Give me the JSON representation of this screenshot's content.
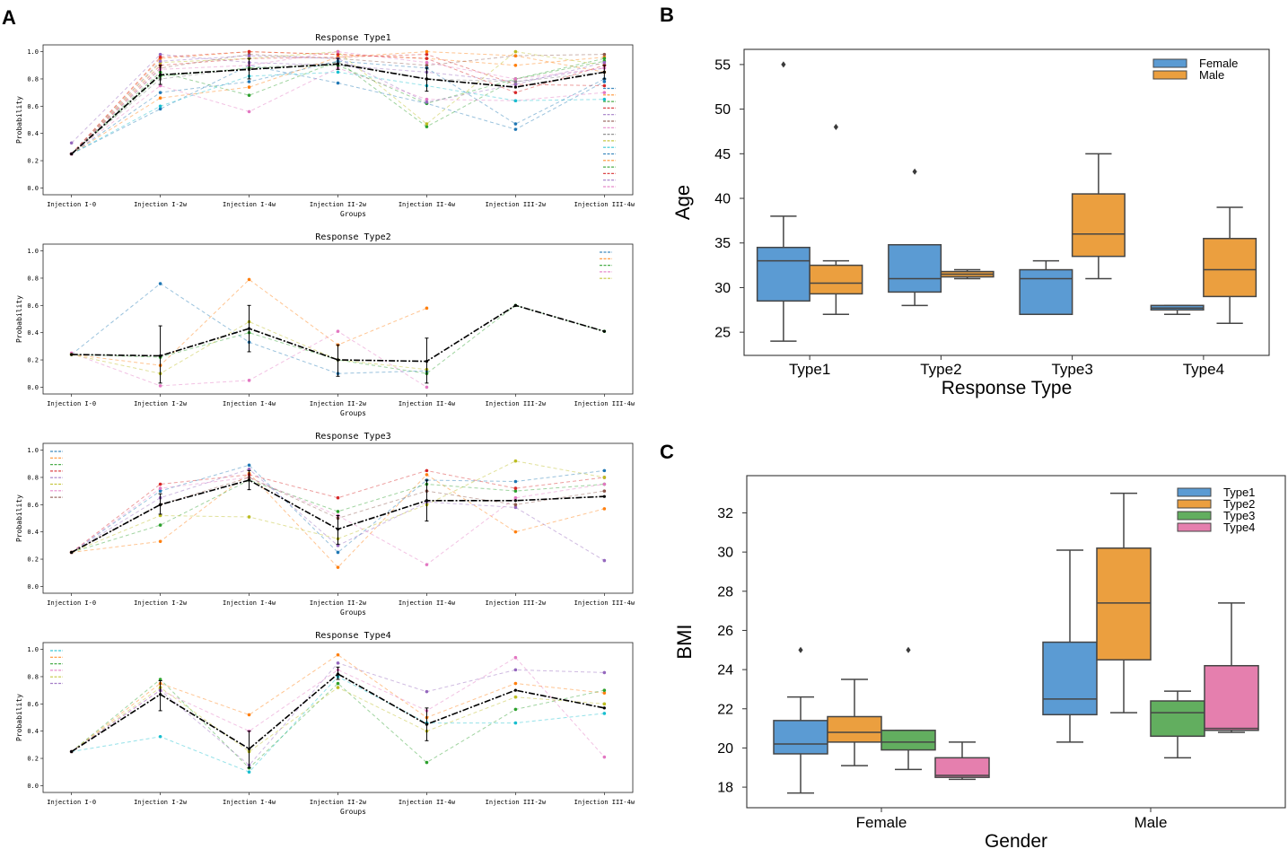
{
  "panels": {
    "a": "A",
    "b": "B",
    "c": "C"
  },
  "chart_data": [
    {
      "type": "line",
      "title": "Response Type1",
      "xlabel": "Groups",
      "ylabel": "Probability",
      "categories": [
        "Injection I-0",
        "Injection I-2w",
        "Injection I-4w",
        "Injection II-2w",
        "Injection II-4w",
        "Injection III-2w",
        "Injection III-4w"
      ],
      "yticks": [
        "0.0",
        "0.2",
        "0.4",
        "0.6",
        "0.8",
        "1.0"
      ],
      "ylim": [
        -0.05,
        1.05
      ],
      "legend": "right",
      "mean": {
        "color": "#000000",
        "values": [
          0.25,
          0.83,
          0.87,
          0.91,
          0.8,
          0.74,
          0.85
        ],
        "err_low": [
          0.25,
          0.76,
          0.8,
          0.87,
          0.71,
          0.74,
          0.8
        ],
        "err_high": [
          0.25,
          0.9,
          0.95,
          0.95,
          0.88,
          0.74,
          0.9
        ]
      },
      "series": [
        {
          "color": "#1f77b4",
          "values": [
            0.25,
            0.58,
            0.9,
            0.77,
            0.62,
            0.43,
            0.78
          ]
        },
        {
          "color": "#ff7f0e",
          "values": [
            0.25,
            0.95,
            1.0,
            0.98,
            0.95,
            0.9,
            0.96
          ]
        },
        {
          "color": "#2ca02c",
          "values": [
            0.25,
            0.85,
            0.68,
            0.93,
            0.45,
            0.8,
            0.93
          ]
        },
        {
          "color": "#d62728",
          "values": [
            0.25,
            0.9,
            0.95,
            0.96,
            0.98,
            0.76,
            0.75
          ]
        },
        {
          "color": "#9467bd",
          "values": [
            0.33,
            0.98,
            0.92,
            0.9,
            0.85,
            0.78,
            0.88
          ]
        },
        {
          "color": "#8c564b",
          "values": [
            0.25,
            0.88,
            0.98,
            0.95,
            0.9,
            0.97,
            0.98
          ]
        },
        {
          "color": "#e377c2",
          "values": [
            0.25,
            0.75,
            0.56,
            0.88,
            0.65,
            0.64,
            0.7
          ]
        },
        {
          "color": "#7f7f7f",
          "values": [
            0.25,
            0.8,
            0.88,
            0.92,
            0.8,
            0.78,
            0.85
          ]
        },
        {
          "color": "#bcbd22",
          "values": [
            0.25,
            0.92,
            0.95,
            1.0,
            0.47,
            1.0,
            0.9
          ]
        },
        {
          "color": "#17becf",
          "values": [
            0.25,
            0.6,
            0.82,
            0.85,
            0.75,
            0.64,
            0.65
          ]
        },
        {
          "color": "#1f77b4",
          "values": [
            0.25,
            0.7,
            0.78,
            0.93,
            0.88,
            0.47,
            0.8
          ]
        },
        {
          "color": "#ff7f0e",
          "values": [
            0.25,
            0.66,
            0.74,
            0.96,
            1.0,
            0.97,
            0.85
          ]
        },
        {
          "color": "#2ca02c",
          "values": [
            0.25,
            0.82,
            0.88,
            0.9,
            0.62,
            0.8,
            0.95
          ]
        },
        {
          "color": "#d62728",
          "values": [
            0.25,
            0.96,
            1.0,
            0.98,
            0.95,
            0.7,
            0.9
          ]
        },
        {
          "color": "#9467bd",
          "values": [
            0.25,
            0.93,
            0.97,
            0.95,
            0.63,
            0.76,
            0.92
          ]
        },
        {
          "color": "#e377c2",
          "values": [
            0.25,
            0.87,
            0.9,
            1.0,
            0.92,
            0.8,
            0.88
          ]
        }
      ]
    },
    {
      "type": "line",
      "title": "Response Type2",
      "xlabel": "Groups",
      "ylabel": "Probability",
      "categories": [
        "Injection I-0",
        "Injection I-2w",
        "Injection I-4w",
        "Injection II-2w",
        "Injection II-4w",
        "Injection III-2w",
        "Injection III-4w"
      ],
      "yticks": [
        "0.0",
        "0.2",
        "0.4",
        "0.6",
        "0.8",
        "1.0"
      ],
      "ylim": [
        -0.05,
        1.05
      ],
      "legend": "top-right",
      "mean": {
        "color": "#000000",
        "values": [
          0.24,
          0.23,
          0.43,
          0.2,
          0.19,
          0.6,
          0.41
        ],
        "err_low": [
          0.24,
          0.03,
          0.26,
          0.08,
          0.03,
          0.6,
          0.41
        ],
        "err_high": [
          0.24,
          0.45,
          0.6,
          0.31,
          0.36,
          0.6,
          0.41
        ]
      },
      "series": [
        {
          "color": "#1f77b4",
          "values": [
            0.24,
            0.76,
            0.33,
            0.1,
            0.12,
            null,
            null
          ]
        },
        {
          "color": "#ff7f0e",
          "values": [
            0.24,
            0.16,
            0.79,
            0.31,
            0.58,
            null,
            null
          ]
        },
        {
          "color": "#2ca02c",
          "values": [
            0.24,
            0.22,
            0.4,
            0.2,
            0.1,
            0.6,
            0.41
          ]
        },
        {
          "color": "#e377c2",
          "values": [
            0.25,
            0.01,
            0.05,
            0.41,
            0.0,
            null,
            null
          ]
        },
        {
          "color": "#bcbd22",
          "values": [
            0.24,
            0.1,
            0.48,
            0.2,
            0.13,
            null,
            null
          ]
        }
      ]
    },
    {
      "type": "line",
      "title": "Response Type3",
      "xlabel": "Groups",
      "ylabel": "Probability",
      "categories": [
        "Injection I-0",
        "Injection I-2w",
        "Injection I-4w",
        "Injection II-2w",
        "Injection II-4w",
        "Injection III-2w",
        "Injection III-4w"
      ],
      "yticks": [
        "0.0",
        "0.2",
        "0.4",
        "0.6",
        "0.8",
        "1.0"
      ],
      "ylim": [
        -0.05,
        1.05
      ],
      "legend": "top-left",
      "mean": {
        "color": "#000000",
        "values": [
          0.25,
          0.6,
          0.78,
          0.42,
          0.63,
          0.63,
          0.66
        ],
        "err_low": [
          0.25,
          0.53,
          0.71,
          0.31,
          0.48,
          0.63,
          0.66
        ],
        "err_high": [
          0.25,
          0.68,
          0.85,
          0.52,
          0.78,
          0.63,
          0.66
        ]
      },
      "series": [
        {
          "color": "#1f77b4",
          "values": [
            0.25,
            0.7,
            0.89,
            0.25,
            0.78,
            0.77,
            0.85
          ]
        },
        {
          "color": "#ff7f0e",
          "values": [
            0.25,
            0.33,
            0.83,
            0.14,
            0.82,
            0.4,
            0.57
          ]
        },
        {
          "color": "#2ca02c",
          "values": [
            0.25,
            0.45,
            0.78,
            0.55,
            0.75,
            0.7,
            0.75
          ]
        },
        {
          "color": "#d62728",
          "values": [
            0.25,
            0.75,
            0.82,
            0.65,
            0.85,
            0.72,
            0.8
          ]
        },
        {
          "color": "#9467bd",
          "values": [
            0.25,
            0.65,
            0.86,
            0.3,
            0.62,
            0.58,
            0.19
          ]
        },
        {
          "color": "#bcbd22",
          "values": [
            0.25,
            0.52,
            0.51,
            0.35,
            0.6,
            0.92,
            0.8
          ]
        },
        {
          "color": "#e377c2",
          "values": [
            0.25,
            0.72,
            0.8,
            0.52,
            0.16,
            0.65,
            0.75
          ]
        },
        {
          "color": "#8c564b",
          "values": [
            0.25,
            0.6,
            0.8,
            0.5,
            0.7,
            0.6,
            0.7
          ]
        }
      ]
    },
    {
      "type": "line",
      "title": "Response Type4",
      "xlabel": "Groups",
      "ylabel": "Probability",
      "categories": [
        "Injection I-0",
        "Injection I-2w",
        "Injection I-4w",
        "Injection II-2w",
        "Injection II-4w",
        "Injection III-2w",
        "Injection III-4w"
      ],
      "yticks": [
        "0.0",
        "0.2",
        "0.4",
        "0.6",
        "0.8",
        "1.0"
      ],
      "ylim": [
        -0.05,
        1.05
      ],
      "legend": "top-left",
      "mean": {
        "color": "#000000",
        "values": [
          0.25,
          0.67,
          0.27,
          0.82,
          0.45,
          0.7,
          0.57
        ],
        "err_low": [
          0.25,
          0.55,
          0.13,
          0.78,
          0.33,
          0.7,
          0.57
        ],
        "err_high": [
          0.25,
          0.77,
          0.4,
          0.87,
          0.57,
          0.7,
          0.57
        ]
      },
      "series": [
        {
          "color": "#17becf",
          "values": [
            0.25,
            0.36,
            0.1,
            0.8,
            0.46,
            0.46,
            0.53
          ]
        },
        {
          "color": "#ff7f0e",
          "values": [
            0.25,
            0.75,
            0.52,
            0.96,
            0.5,
            0.75,
            0.68
          ]
        },
        {
          "color": "#2ca02c",
          "values": [
            0.25,
            0.78,
            0.13,
            0.75,
            0.17,
            0.56,
            0.7
          ]
        },
        {
          "color": "#e377c2",
          "values": [
            0.25,
            0.7,
            0.4,
            0.85,
            0.55,
            0.94,
            0.21
          ]
        },
        {
          "color": "#bcbd22",
          "values": [
            0.25,
            0.72,
            0.25,
            0.72,
            0.4,
            0.65,
            0.6
          ]
        },
        {
          "color": "#9467bd",
          "values": [
            0.25,
            0.7,
            0.15,
            0.9,
            0.69,
            0.85,
            0.83
          ]
        }
      ]
    },
    {
      "type": "box",
      "title": "",
      "xlabel": "Response Type",
      "ylabel": "Age",
      "categories": [
        "Type1",
        "Type2",
        "Type3",
        "Type4"
      ],
      "yticks": [
        25,
        30,
        35,
        40,
        45,
        50,
        55
      ],
      "ylim": [
        22.4,
        56.7
      ],
      "legend": "top-right",
      "series": [
        {
          "name": "Female",
          "color": "#5b9bd3",
          "boxes": [
            {
              "whislo": 24,
              "q1": 28.5,
              "med": 33,
              "q3": 34.5,
              "whishi": 38,
              "fliers": [
                55
              ]
            },
            {
              "whislo": 28,
              "q1": 29.5,
              "med": 31,
              "q3": 34.8,
              "whishi": 34.8,
              "fliers": [
                43
              ]
            },
            {
              "whislo": 27,
              "q1": 27,
              "med": 31,
              "q3": 32,
              "whishi": 33,
              "fliers": []
            },
            {
              "whislo": 27,
              "q1": 27.5,
              "med": 27.7,
              "q3": 28,
              "whishi": 28,
              "fliers": []
            }
          ]
        },
        {
          "name": "Male",
          "color": "#eb9f3f",
          "boxes": [
            {
              "whislo": 27,
              "q1": 29.3,
              "med": 30.5,
              "q3": 32.5,
              "whishi": 33,
              "fliers": [
                48
              ]
            },
            {
              "whislo": 31,
              "q1": 31.2,
              "med": 31.5,
              "q3": 31.8,
              "whishi": 32,
              "fliers": []
            },
            {
              "whislo": 31,
              "q1": 33.5,
              "med": 36,
              "q3": 40.5,
              "whishi": 45,
              "fliers": []
            },
            {
              "whislo": 26,
              "q1": 29,
              "med": 32,
              "q3": 35.5,
              "whishi": 39,
              "fliers": []
            }
          ]
        }
      ]
    },
    {
      "type": "box",
      "title": "",
      "xlabel": "Gender",
      "ylabel": "BMI",
      "categories": [
        "Female",
        "Male"
      ],
      "yticks": [
        18,
        20,
        22,
        24,
        26,
        28,
        30,
        32
      ],
      "ylim": [
        16.95,
        33.9
      ],
      "legend": "top-right",
      "series": [
        {
          "name": "Type1",
          "color": "#5b9bd3",
          "boxes": [
            {
              "whislo": 17.7,
              "q1": 19.7,
              "med": 20.2,
              "q3": 21.4,
              "whishi": 22.6,
              "fliers": [
                25
              ]
            },
            {
              "whislo": 20.3,
              "q1": 21.7,
              "med": 22.5,
              "q3": 25.4,
              "whishi": 30.1,
              "fliers": []
            }
          ]
        },
        {
          "name": "Type2",
          "color": "#eb9f3f",
          "boxes": [
            {
              "whislo": 19.1,
              "q1": 20.3,
              "med": 20.8,
              "q3": 21.6,
              "whishi": 23.5,
              "fliers": []
            },
            {
              "whislo": 21.8,
              "q1": 24.5,
              "med": 27.4,
              "q3": 30.2,
              "whishi": 33.0,
              "fliers": []
            }
          ]
        },
        {
          "name": "Type3",
          "color": "#62ae5f",
          "boxes": [
            {
              "whislo": 18.9,
              "q1": 19.9,
              "med": 20.3,
              "q3": 20.9,
              "whishi": 20.9,
              "fliers": [
                25
              ]
            },
            {
              "whislo": 19.5,
              "q1": 20.6,
              "med": 21.8,
              "q3": 22.4,
              "whishi": 22.9,
              "fliers": []
            }
          ]
        },
        {
          "name": "Type4",
          "color": "#e57fae",
          "boxes": [
            {
              "whislo": 18.4,
              "q1": 18.5,
              "med": 18.6,
              "q3": 19.5,
              "whishi": 20.3,
              "fliers": []
            },
            {
              "whislo": 20.8,
              "q1": 20.9,
              "med": 21.0,
              "q3": 24.2,
              "whishi": 27.4,
              "fliers": []
            }
          ]
        }
      ]
    }
  ]
}
